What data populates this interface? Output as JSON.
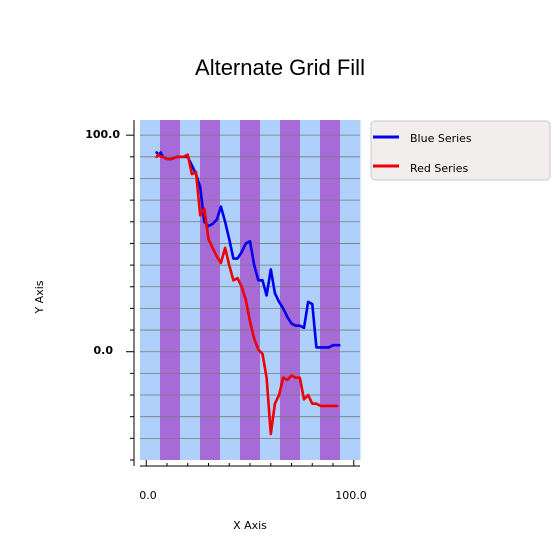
{
  "chart_data": {
    "type": "line",
    "title": "Alternate Grid Fill",
    "xlabel": "X Axis",
    "ylabel": "Y Axis",
    "xlim": [
      -3,
      103
    ],
    "ylim": [
      -50,
      107
    ],
    "x_ticks": [
      0,
      100
    ],
    "x_tick_labels": [
      "0.0",
      "100.0"
    ],
    "y_ticks": [
      0,
      100
    ],
    "y_tick_labels": [
      "0.0",
      "100.0"
    ],
    "grid": true,
    "grid_fill_colors": [
      "#a66bd6",
      "#aed0fa"
    ],
    "legend_position": "right",
    "series": [
      {
        "name": "Blue Series",
        "color": "#0000ee",
        "x": [
          5,
          6,
          7,
          8,
          10,
          12,
          15,
          20,
          22,
          24,
          26,
          28,
          30,
          32,
          34,
          36,
          38,
          40,
          42,
          44,
          46,
          48,
          50,
          52,
          54,
          56,
          58,
          60,
          62,
          64,
          66,
          68,
          70,
          72,
          74,
          76,
          78,
          80,
          82,
          84,
          86,
          88,
          90,
          91,
          92,
          93
        ],
        "y": [
          92,
          91,
          92,
          90,
          89,
          89,
          90,
          90,
          86,
          82,
          76,
          60,
          58,
          59,
          61,
          67,
          60,
          52,
          43,
          43,
          46,
          50,
          51,
          40,
          33,
          33,
          26,
          38,
          27,
          23,
          20,
          16,
          13,
          12,
          12,
          11,
          23,
          22,
          2,
          2,
          2,
          2,
          3,
          3,
          3,
          3
        ]
      },
      {
        "name": "Red Series",
        "color": "#ee0000",
        "x": [
          5,
          6,
          7,
          8,
          10,
          12,
          15,
          18,
          20,
          22,
          24,
          26,
          28,
          30,
          32,
          34,
          36,
          38,
          40,
          42,
          44,
          46,
          48,
          50,
          52,
          54,
          56,
          58,
          60,
          62,
          64,
          66,
          68,
          70,
          72,
          74,
          76,
          78,
          80,
          82,
          84,
          86,
          88,
          90,
          92
        ],
        "y": [
          90,
          91,
          90,
          90,
          89,
          89,
          90,
          90,
          91,
          82,
          83,
          63,
          66,
          52,
          48,
          44,
          41,
          48,
          40,
          33,
          34,
          30,
          24,
          14,
          6,
          1,
          -1,
          -12,
          -38,
          -24,
          -20,
          -12,
          -13,
          -11,
          -12,
          -12,
          -22,
          -20,
          -24,
          -24,
          -25,
          -25,
          -25,
          -25,
          -25
        ]
      }
    ]
  }
}
